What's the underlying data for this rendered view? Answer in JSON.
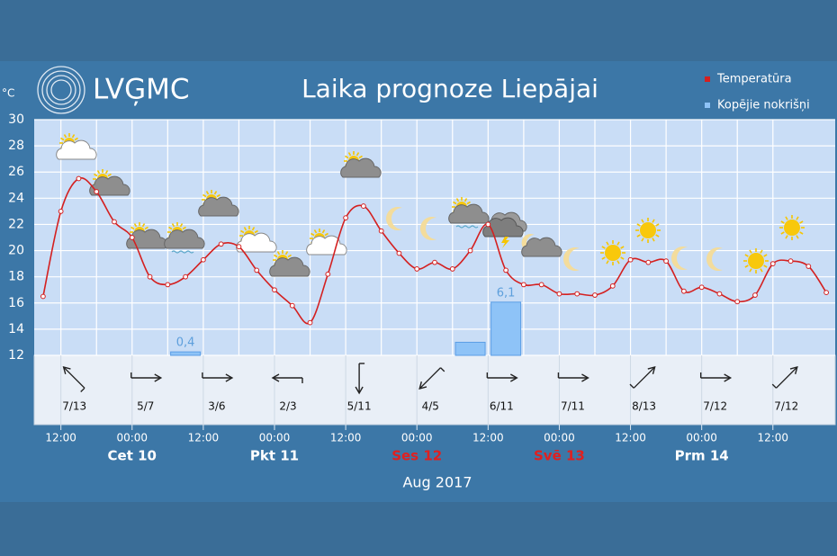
{
  "chart_data": {
    "type": "line",
    "logo": "LVĢMC",
    "title": "Laika prognoze Liepājai",
    "y_unit": "°C",
    "x_label": "Aug 2017",
    "xlim": [
      "2017-08-09T07:30",
      "2017-08-14T22:30"
    ],
    "ylim": [
      12,
      30
    ],
    "yticks": [
      12,
      14,
      16,
      18,
      20,
      22,
      24,
      26,
      28,
      30
    ],
    "y2lim": [
      0,
      27
    ],
    "grid": true,
    "xticks": [
      {
        "value": "2017-08-09T12:00",
        "label": "12:00"
      },
      {
        "value": "2017-08-10T00:00",
        "label": "00:00"
      },
      {
        "value": "2017-08-10T12:00",
        "label": "12:00"
      },
      {
        "value": "2017-08-11T00:00",
        "label": "00:00"
      },
      {
        "value": "2017-08-11T12:00",
        "label": "12:00"
      },
      {
        "value": "2017-08-12T00:00",
        "label": "00:00"
      },
      {
        "value": "2017-08-12T12:00",
        "label": "12:00"
      },
      {
        "value": "2017-08-13T00:00",
        "label": "00:00"
      },
      {
        "value": "2017-08-13T12:00",
        "label": "12:00"
      },
      {
        "value": "2017-08-14T00:00",
        "label": "00:00"
      },
      {
        "value": "2017-08-14T12:00",
        "label": "12:00"
      }
    ],
    "days": [
      {
        "value": "2017-08-10T00:00",
        "label": "Cet 10",
        "color": "#ffffff"
      },
      {
        "value": "2017-08-11T00:00",
        "label": "Pkt 11",
        "color": "#ffffff"
      },
      {
        "value": "2017-08-12T00:00",
        "label": "Ses 12",
        "color": "#e02020"
      },
      {
        "value": "2017-08-13T00:00",
        "label": "Svē 13",
        "color": "#e02020"
      },
      {
        "value": "2017-08-14T00:00",
        "label": "Prm 14",
        "color": "#ffffff"
      }
    ],
    "x": [
      "2017-08-09T09:00",
      "2017-08-09T12:00",
      "2017-08-09T15:00",
      "2017-08-09T18:00",
      "2017-08-09T21:00",
      "2017-08-10T00:00",
      "2017-08-10T03:00",
      "2017-08-10T06:00",
      "2017-08-10T09:00",
      "2017-08-10T12:00",
      "2017-08-10T15:00",
      "2017-08-10T18:00",
      "2017-08-10T21:00",
      "2017-08-11T00:00",
      "2017-08-11T03:00",
      "2017-08-11T06:00",
      "2017-08-11T09:00",
      "2017-08-11T12:00",
      "2017-08-11T15:00",
      "2017-08-11T18:00",
      "2017-08-11T21:00",
      "2017-08-12T00:00",
      "2017-08-12T03:00",
      "2017-08-12T06:00",
      "2017-08-12T09:00",
      "2017-08-12T12:00",
      "2017-08-12T15:00",
      "2017-08-12T18:00",
      "2017-08-12T21:00",
      "2017-08-13T00:00",
      "2017-08-13T03:00",
      "2017-08-13T06:00",
      "2017-08-13T09:00",
      "2017-08-13T12:00",
      "2017-08-13T15:00",
      "2017-08-13T18:00",
      "2017-08-13T21:00",
      "2017-08-14T00:00",
      "2017-08-14T03:00",
      "2017-08-14T06:00",
      "2017-08-14T09:00",
      "2017-08-14T12:00",
      "2017-08-14T15:00",
      "2017-08-14T18:00",
      "2017-08-14T21:00"
    ],
    "series": [
      {
        "name": "Temperatūra",
        "color": "#d42020",
        "values": [
          16.5,
          23,
          25.5,
          24.5,
          22.2,
          21,
          18,
          17.4,
          18,
          19.3,
          20.5,
          20.3,
          18.5,
          17,
          15.8,
          14.5,
          18.2,
          22.5,
          23.4,
          21.5,
          19.8,
          18.6,
          19.1,
          18.6,
          20,
          22,
          18.5,
          17.4,
          17.4,
          16.7,
          16.7,
          16.6,
          17.3,
          19.3,
          19.1,
          19.2,
          16.9,
          17.2,
          16.7,
          16.1,
          16.6,
          19,
          19.2,
          18.8,
          16.8
        ]
      },
      {
        "name": "Kopējie nokrišņi",
        "type": "bar",
        "axis": "y2",
        "color": "#8ec3f7",
        "x": [
          "2017-08-10T09:00",
          "2017-08-12T09:00",
          "2017-08-12T15:00"
        ],
        "values": [
          0.4,
          1.5,
          6.1
        ],
        "value_labels": [
          "0,4",
          null,
          "6,1"
        ]
      }
    ],
    "wind": {
      "x": [
        "2017-08-09T12:00",
        "2017-08-10T00:00",
        "2017-08-10T12:00",
        "2017-08-11T00:00",
        "2017-08-11T12:00",
        "2017-08-12T00:00",
        "2017-08-12T12:00",
        "2017-08-13T00:00",
        "2017-08-13T12:00",
        "2017-08-14T00:00",
        "2017-08-14T12:00"
      ],
      "labels": [
        "7/13",
        "5/7",
        "3/6",
        "2/3",
        "5/11",
        "4/5",
        "6/11",
        "7/11",
        "8/13",
        "7/12",
        "7/12"
      ],
      "directions": [
        315,
        90,
        90,
        270,
        180,
        225,
        90,
        90,
        45,
        90,
        45
      ]
    }
  }
}
